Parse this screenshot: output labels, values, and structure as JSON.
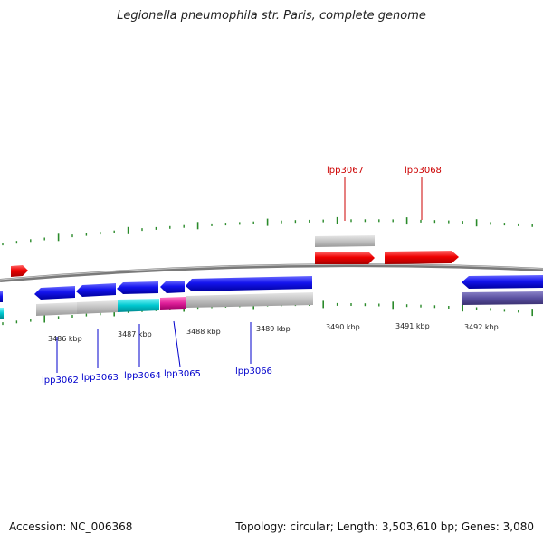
{
  "title": "Legionella pneumophila str. Paris, complete genome",
  "footer": {
    "accession": "Accession: NC_006368",
    "summary": "Topology: circular; Length: 3,503,610 bp; Genes: 3,080"
  },
  "colors": {
    "forward_gene": "#e00000",
    "reverse_gene": "#1010e0",
    "cds_gray": "#c0c0c0",
    "cyan": "#00c8d0",
    "magenta": "#e0209a",
    "indigo": "#5a50a0",
    "tick": "#2a8a2a",
    "label_blue": "#0000cc",
    "label_red": "#cc0000"
  },
  "kbp_labels": [
    "3486 kbp",
    "3487 kbp",
    "3488 kbp",
    "3489 kbp",
    "3490 kbp",
    "3491 kbp",
    "3492 kbp"
  ],
  "gene_labels": {
    "lpp3062": "lpp3062",
    "lpp3063": "lpp3063",
    "lpp3064": "lpp3064",
    "lpp3065": "lpp3065",
    "lpp3066": "lpp3066",
    "lpp3067": "lpp3067",
    "lpp3068": "lpp3068"
  }
}
